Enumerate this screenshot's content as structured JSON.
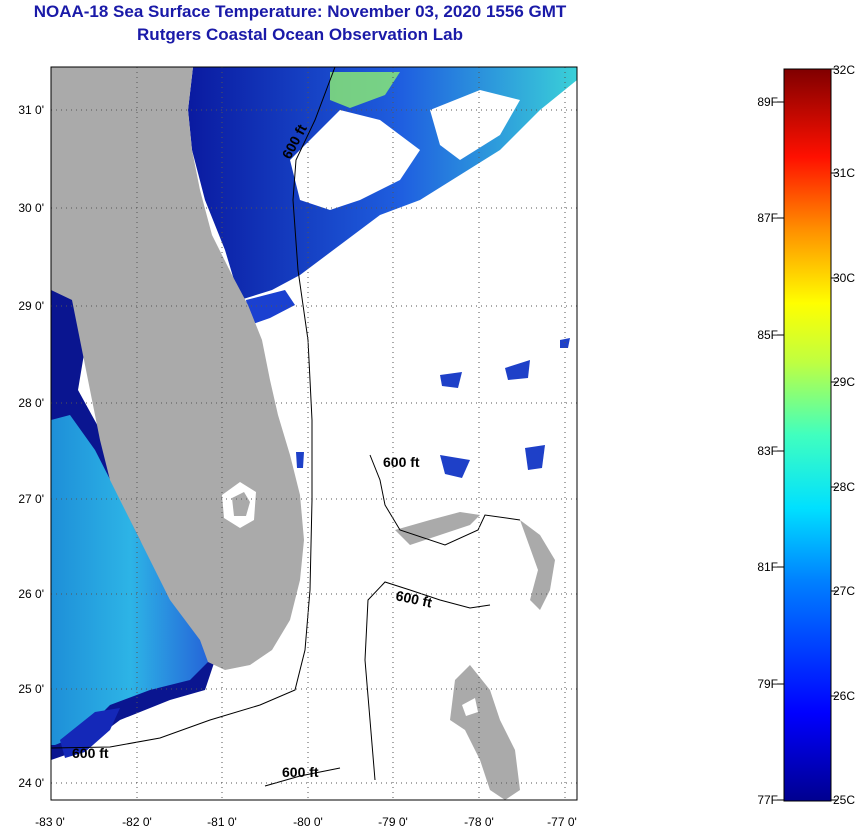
{
  "header": {
    "title": "NOAA-18 Sea Surface Temperature:  November 03, 2020 1556 GMT",
    "subtitle": "Rutgers Coastal Ocean Observation Lab"
  },
  "map": {
    "lat_labels": [
      "31 0'",
      "30 0'",
      "29 0'",
      "28 0'",
      "27 0'",
      "26 0'",
      "25 0'",
      "24 0'"
    ],
    "lon_labels": [
      "-83 0'",
      "-82 0'",
      "-81 0'",
      "-80 0'",
      "-79 0'",
      "-78 0'",
      "-77 0'"
    ],
    "contour_labels": [
      "600 ft",
      "600 ft",
      "600 ft",
      "600 ft",
      "600 ft"
    ]
  },
  "colorbar": {
    "celsius_labels": [
      "32C",
      "31C",
      "30C",
      "29C",
      "28C",
      "27C",
      "26C",
      "25C"
    ],
    "fahrenheit_labels": [
      "89F",
      "87F",
      "85F",
      "83F",
      "81F",
      "79F",
      "77F"
    ]
  },
  "colors": {
    "land": "#aaaaaa",
    "title": "#1a1aa8"
  }
}
